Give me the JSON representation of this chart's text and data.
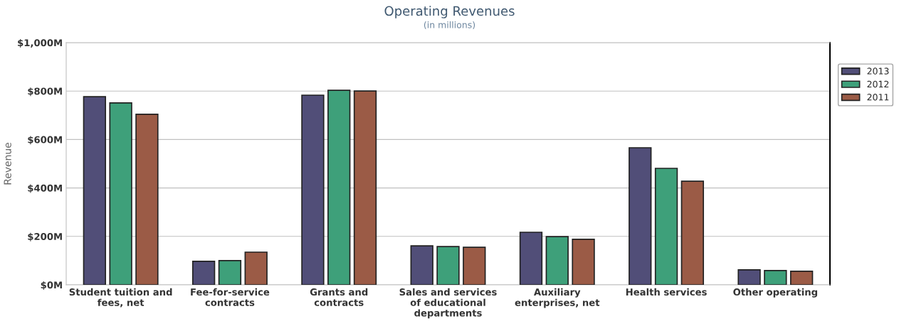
{
  "chart_data": {
    "type": "bar",
    "title": "Operating Revenues",
    "subtitle": "(in millions)",
    "ylabel": "Revenue",
    "categories": [
      "Student tuition and\nfees, net",
      "Fee-for-service\ncontracts",
      "Grants and\ncontracts",
      "Sales and services\nof educational\ndepartments",
      "Auxiliary\nenterprises, net",
      "Health services",
      "Other operating"
    ],
    "series": [
      {
        "name": "2013",
        "color": "#514e78",
        "values": [
          777,
          97,
          783,
          161,
          217,
          566,
          62
        ]
      },
      {
        "name": "2012",
        "color": "#3ea07a",
        "values": [
          751,
          100,
          803,
          158,
          199,
          481,
          59
        ]
      },
      {
        "name": "2011",
        "color": "#9b5b46",
        "values": [
          704,
          135,
          800,
          155,
          188,
          428,
          56
        ]
      }
    ],
    "ylim": [
      0,
      1000
    ],
    "yticks": [
      {
        "value": 0,
        "label": "$0M"
      },
      {
        "value": 200,
        "label": "$200M"
      },
      {
        "value": 400,
        "label": "$400M"
      },
      {
        "value": 600,
        "label": "$600M"
      },
      {
        "value": 800,
        "label": "$800M"
      },
      {
        "value": 1000,
        "label": "$1,000M"
      }
    ],
    "grid": "y",
    "legend": "top right"
  }
}
